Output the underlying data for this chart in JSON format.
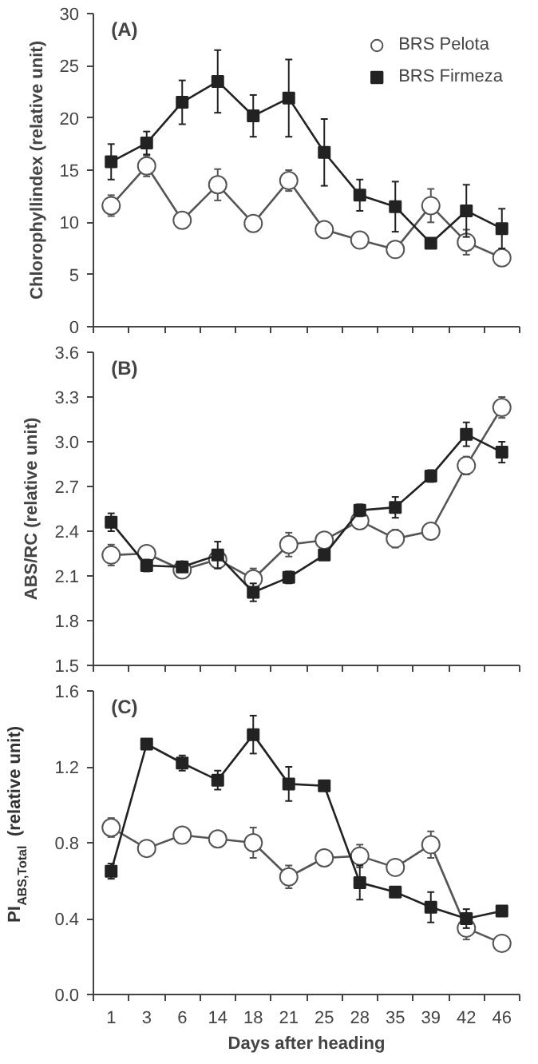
{
  "chart_data": [
    {
      "type": "line",
      "title": "(A)",
      "ylabel": "Chlorophyllindex (relative unit)",
      "categories": [
        "1",
        "3",
        "6",
        "14",
        "18",
        "21",
        "25",
        "28",
        "35",
        "39",
        "42",
        "46"
      ],
      "ylim": [
        0,
        30
      ],
      "yticks": [
        0,
        5,
        10,
        15,
        20,
        25,
        30
      ],
      "grid": false,
      "legend": "top right",
      "tick_labels": "y",
      "series": [
        {
          "name": "BRS Pelota",
          "color": "#555555",
          "marker": "circle",
          "values": [
            11.6,
            15.4,
            10.2,
            13.6,
            9.9,
            14.0,
            9.3,
            8.3,
            7.4,
            11.6,
            8.1,
            6.6
          ],
          "errors": [
            1.0,
            1.0,
            null,
            1.5,
            null,
            1.0,
            null,
            null,
            0.6,
            1.6,
            1.2,
            null
          ]
        },
        {
          "name": "BRS Firmeza",
          "color": "#222222",
          "marker": "square",
          "values": [
            15.8,
            17.6,
            21.5,
            23.5,
            20.2,
            21.9,
            16.7,
            12.6,
            11.5,
            8.0,
            11.1,
            9.4
          ],
          "errors": [
            1.7,
            1.1,
            2.1,
            3.0,
            2.0,
            3.7,
            3.2,
            1.5,
            2.4,
            null,
            2.5,
            1.9
          ]
        }
      ]
    },
    {
      "type": "line",
      "title": "(B)",
      "ylabel": "ABS/RC (relative unit)",
      "categories": [
        "1",
        "3",
        "6",
        "14",
        "18",
        "21",
        "25",
        "28",
        "35",
        "39",
        "42",
        "46"
      ],
      "ylim": [
        1.5,
        3.6
      ],
      "yticks": [
        {
          "value": 1.5,
          "label": "1.5"
        },
        {
          "value": 1.8,
          "label": "1.8"
        },
        {
          "value": 2.1,
          "label": "2.1"
        },
        {
          "value": 2.4,
          "label": "2.4"
        },
        {
          "value": 2.7,
          "label": "2.7"
        },
        {
          "value": 3.0,
          "label": "3.0"
        },
        {
          "value": 3.3,
          "label": "3.3"
        },
        {
          "value": 3.6,
          "label": "3.6"
        }
      ],
      "grid": false,
      "tick_labels": "y",
      "series": [
        {
          "color": "#555555",
          "marker": "circle",
          "values": [
            2.24,
            2.25,
            2.14,
            2.21,
            2.08,
            2.31,
            2.34,
            2.47,
            2.35,
            2.4,
            2.84,
            3.23
          ],
          "errors": [
            0.07,
            null,
            null,
            0.04,
            0.07,
            0.08,
            null,
            null,
            0.06,
            null,
            0.06,
            0.07
          ]
        },
        {
          "color": "#222222",
          "marker": "square",
          "values": [
            2.46,
            2.17,
            2.16,
            2.24,
            1.99,
            2.09,
            2.24,
            2.54,
            2.56,
            2.77,
            3.05,
            2.93
          ],
          "errors": [
            0.06,
            0.04,
            null,
            0.09,
            0.06,
            0.04,
            null,
            0.04,
            0.07,
            0.04,
            0.08,
            0.07
          ]
        }
      ]
    },
    {
      "type": "line",
      "title": "(C)",
      "ylabel": "PI$_{ABS,Total}$ (relative unit)",
      "xlabel": "Days after heading",
      "categories": [
        "1",
        "3",
        "6",
        "14",
        "18",
        "21",
        "25",
        "28",
        "35",
        "39",
        "42",
        "46"
      ],
      "ylim": [
        0.0,
        1.6
      ],
      "yticks": [
        {
          "value": 0.0,
          "label": "0.0"
        },
        {
          "value": 0.4,
          "label": "0.4"
        },
        {
          "value": 0.8,
          "label": "0.8"
        },
        {
          "value": 1.2,
          "label": "1.2"
        },
        {
          "value": 1.6,
          "label": "1.6"
        }
      ],
      "grid": false,
      "series": [
        {
          "color": "#555555",
          "marker": "circle",
          "values": [
            0.88,
            0.77,
            0.84,
            0.82,
            0.8,
            0.62,
            0.72,
            0.73,
            0.67,
            0.79,
            0.35,
            0.27
          ],
          "errors": [
            0.05,
            null,
            0.04,
            null,
            0.08,
            0.06,
            null,
            0.06,
            null,
            0.07,
            0.06,
            0.03
          ]
        },
        {
          "color": "#222222",
          "marker": "square",
          "values": [
            0.65,
            1.32,
            1.22,
            1.13,
            1.37,
            1.11,
            1.1,
            0.59,
            0.54,
            0.46,
            0.4,
            0.44
          ],
          "errors": [
            0.04,
            0.02,
            0.04,
            0.05,
            0.1,
            0.09,
            null,
            0.09,
            null,
            0.08,
            0.05,
            null
          ]
        }
      ]
    }
  ]
}
